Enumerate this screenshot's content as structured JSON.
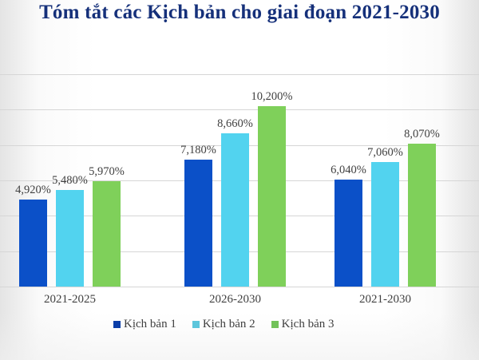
{
  "title": "Tóm tắt các Kịch bản cho giai đoạn 2021-2030",
  "colors": {
    "title": "#15307a",
    "kich_ban_1": "#0b50c8",
    "kich_ban_2": "#52d3ef",
    "kich_ban_3": "#7fd05a"
  },
  "categories": [
    "2021-2025",
    "2026-2030",
    "2021-2030"
  ],
  "labels": {
    "s1": [
      "4,920%",
      "7,180%",
      "6,040%"
    ],
    "s2": [
      "5,480%",
      "8,660%",
      "7,060%"
    ],
    "s3": [
      "5,970%",
      "10,200%",
      "8,070%"
    ]
  },
  "legend": [
    "Kịch bản 1",
    "Kịch bản 2",
    "Kịch bản 3"
  ],
  "chart_data": {
    "type": "bar",
    "title": "Tóm tắt các Kịch bản cho giai đoạn 2021-2030",
    "categories": [
      "2021-2025",
      "2026-2030",
      "2021-2030"
    ],
    "series": [
      {
        "name": "Kịch bản 1",
        "values": [
          4.92,
          7.18,
          6.04
        ],
        "color": "#0b50c8"
      },
      {
        "name": "Kịch bản 2",
        "values": [
          5.48,
          8.66,
          7.06
        ],
        "color": "#52d3ef"
      },
      {
        "name": "Kịch bản 3",
        "values": [
          5.97,
          10.2,
          8.07
        ],
        "color": "#7fd05a"
      }
    ],
    "data_labels": [
      [
        "4,920%",
        "7,180%",
        "6,040%"
      ],
      [
        "5,480%",
        "8,660%",
        "7,060%"
      ],
      [
        "5,970%",
        "10,200%",
        "8,070%"
      ]
    ],
    "xlabel": "",
    "ylabel": "",
    "ylim": [
      0,
      12
    ],
    "y_axis_visible": false,
    "grid": true,
    "legend_position": "bottom"
  }
}
